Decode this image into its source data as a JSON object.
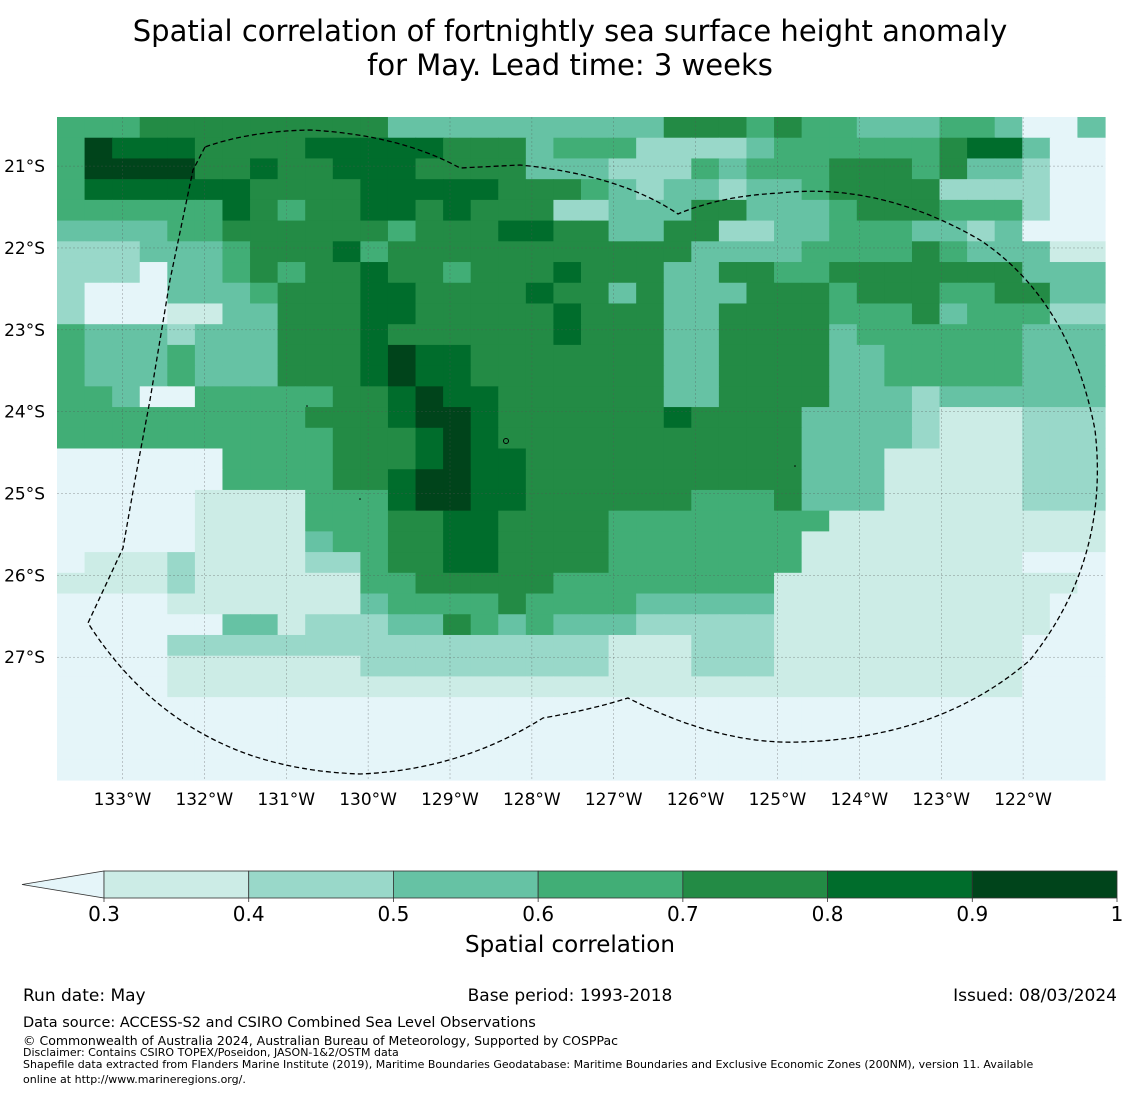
{
  "title": {
    "line1": "Spatial correlation of fortnightly sea surface height anomaly",
    "line2": "for May. Lead time: 3 weeks"
  },
  "map": {
    "lon_ticks": [
      "133°W",
      "132°W",
      "131°W",
      "130°W",
      "129°W",
      "128°W",
      "127°W",
      "126°W",
      "125°W",
      "124°W",
      "123°W",
      "122°W"
    ],
    "lat_ticks": [
      "21°S",
      "22°S",
      "23°S",
      "24°S",
      "25°S",
      "26°S",
      "27°S"
    ],
    "lon_values": [
      -133,
      -132,
      -131,
      -130,
      -129,
      -128,
      -127,
      -126,
      -125,
      -124,
      -123,
      -122
    ],
    "lat_values": [
      -21,
      -22,
      -23,
      -24,
      -25,
      -26,
      -27
    ],
    "lon_range": [
      -133.8,
      -121.0
    ],
    "lat_range": [
      -28.5,
      -20.4
    ],
    "grid": true,
    "boundary": "dashed outline of exclusive economic zone",
    "grid_rows": [
      "44455555555533333333335554544333443003",
      "47666555566666555344422223444444566300",
      "47777556556665555333222434445554533200",
      "46666665555666665554323323345555222200",
      "44444465455665655522333553334555444200",
      "33334455555545556655335522334443323000",
      "22233345556455555555555333344445433311",
      "22203345455655455565553355445555555333",
      "20003334555665555655353335554555445533",
      "20001133555665555565553355554445344422",
      "43332333555655555565553355553444444333",
      "43334333555676655555553355553344444333",
      "43334333555676655555553355553344444333",
      "44300444445567665555553355553332333333",
      "44444444455567765555556555533332111222",
      "44444444445556765555555555533332111222",
      "00000044445556766555555555533311111222",
      "00000044445567766555555555533311111222",
      "00000111144467766555555444533311111222",
      "00000111144455665555444444441111111111",
      "00000111134455665555444444411111111111",
      "01112111122455665555444444411111111000",
      "11112111111445555544444444111111111110",
      "00001111111344445444433333111111111100",
      "00000033122233543433322222111111111100",
      "00002222222222222222111222111111111000",
      "00001111111222222222111222111111111000",
      "00001111111111111111111111111111111000",
      "00000000000000000000000000000000000000",
      "00000000000000000000000000000000000000",
      "00000000000000000000000000000000000000",
      "00000000000000000000000000000000000000"
    ]
  },
  "colorbar": {
    "tick_labels": [
      "0.3",
      "0.4",
      "0.5",
      "0.6",
      "0.7",
      "0.8",
      "0.9",
      "1"
    ],
    "boundaries": [
      0.3,
      0.4,
      0.5,
      0.6,
      0.7,
      0.8,
      0.9,
      1.0
    ],
    "colors": [
      "#ccece6",
      "#99d8c9",
      "#66c2a4",
      "#41ae76",
      "#238b45",
      "#006d2c",
      "#00441b"
    ],
    "under_color": "#e5f5f9",
    "extend": "min",
    "label": "Spatial correlation"
  },
  "footer": {
    "run_date": "Run date: May",
    "base_period": "Base period: 1993-2018",
    "issued": "Issued: 08/03/2024",
    "data_source": "Data source: ACCESS-S2 and CSIRO Combined Sea Level Observations",
    "copyright": "© Commonwealth of Australia 2024, Australian Bureau of Meteorology, Supported by COSPPac",
    "disclaimer": "Disclaimer: Contains CSIRO TOPEX/Poseidon, JASON-1&2/OSTM data",
    "shapefile_line1": "Shapefile data extracted from Flanders Marine Institute (2019), Maritime Boundaries Geodatabase: Maritime Boundaries and Exclusive Economic Zones (200NM), version 11. Available",
    "shapefile_line2": "online at http://www.marineregions.org/."
  }
}
